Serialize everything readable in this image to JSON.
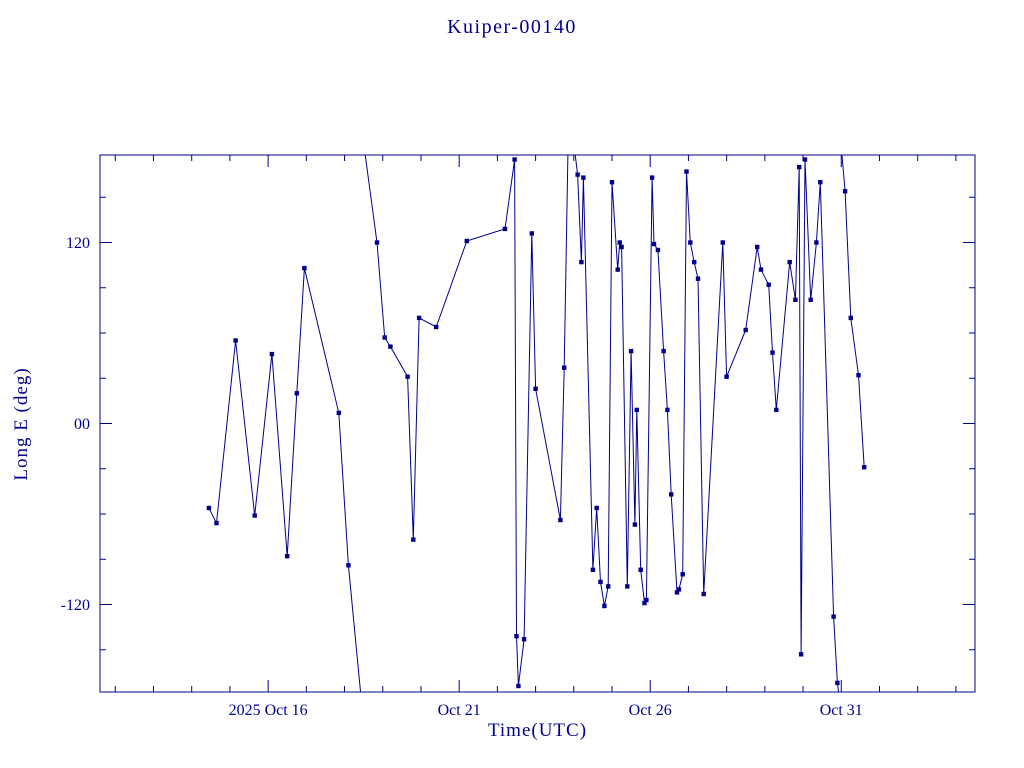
{
  "colors": {
    "plot": "#00008b",
    "background": "#ffffff"
  },
  "chart_data": {
    "type": "line",
    "title": "Kuiper-00140",
    "xlabel": "Time(UTC)",
    "ylabel": "Long E (deg)",
    "x_unit": "day of October 2025, UTC (32 = Nov 1)",
    "xlim": [
      11.6,
      34.5
    ],
    "ylim": [
      -178,
      178
    ],
    "grid": false,
    "legend": "none",
    "marker": "filled-square",
    "x_ticks_major": [
      {
        "day": 16,
        "label": "2025 Oct 16"
      },
      {
        "day": 21,
        "label": "Oct 21"
      },
      {
        "day": 26,
        "label": "Oct 26"
      },
      {
        "day": 31,
        "label": "Oct 31"
      }
    ],
    "x_ticks_minor_days": [
      12,
      13,
      14,
      15,
      17,
      18,
      19,
      20,
      22,
      23,
      24,
      25,
      27,
      28,
      29,
      30,
      32,
      33,
      34
    ],
    "y_ticks_major": [
      {
        "value": -120,
        "label": "-120"
      },
      {
        "value": 0,
        "label": "00"
      },
      {
        "value": 120,
        "label": "120"
      }
    ],
    "y_ticks_minor": [
      -150,
      -90,
      -60,
      -30,
      30,
      60,
      90,
      150
    ],
    "segments": [
      [
        [
          14.45,
          -56
        ],
        [
          14.65,
          -66
        ],
        [
          15.15,
          55
        ],
        [
          15.65,
          -61
        ],
        [
          16.1,
          46
        ],
        [
          16.5,
          -88
        ],
        [
          16.75,
          20
        ],
        [
          16.95,
          103
        ],
        [
          17.85,
          7
        ],
        [
          18.1,
          -94
        ],
        [
          18.45,
          -186
        ]
      ],
      [
        [
          18.5,
          186
        ],
        [
          18.85,
          120
        ],
        [
          19.05,
          57
        ],
        [
          19.2,
          51
        ],
        [
          19.65,
          31
        ],
        [
          19.8,
          -77
        ],
        [
          19.95,
          70
        ],
        [
          20.4,
          64
        ],
        [
          21.2,
          121
        ],
        [
          22.2,
          129
        ],
        [
          22.45,
          175
        ],
        [
          22.5,
          -141
        ],
        [
          22.55,
          -174
        ],
        [
          22.7,
          -143
        ],
        [
          22.9,
          126
        ],
        [
          23.0,
          23
        ],
        [
          23.65,
          -64
        ],
        [
          23.75,
          37
        ],
        [
          23.85,
          186
        ]
      ],
      [
        [
          24.0,
          186
        ],
        [
          24.1,
          165
        ],
        [
          24.2,
          107
        ],
        [
          24.25,
          163
        ],
        [
          24.5,
          -97
        ],
        [
          24.6,
          -56
        ],
        [
          24.7,
          -105
        ],
        [
          24.8,
          -121
        ],
        [
          24.9,
          -108
        ],
        [
          25.0,
          160
        ],
        [
          25.15,
          102
        ],
        [
          25.2,
          120
        ],
        [
          25.25,
          117
        ],
        [
          25.4,
          -108
        ],
        [
          25.5,
          48
        ],
        [
          25.6,
          -67
        ],
        [
          25.65,
          9
        ],
        [
          25.75,
          -97
        ],
        [
          25.85,
          -119
        ],
        [
          25.9,
          -117
        ],
        [
          26.05,
          163
        ],
        [
          26.1,
          119
        ],
        [
          26.2,
          115
        ],
        [
          26.35,
          48
        ],
        [
          26.45,
          9
        ],
        [
          26.55,
          -47
        ],
        [
          26.7,
          -112
        ],
        [
          26.75,
          -110
        ],
        [
          26.85,
          -100
        ],
        [
          26.95,
          167
        ],
        [
          27.05,
          120
        ],
        [
          27.15,
          107
        ],
        [
          27.25,
          96
        ],
        [
          27.4,
          -113
        ],
        [
          27.9,
          120
        ],
        [
          28.0,
          31
        ],
        [
          28.5,
          62
        ],
        [
          28.8,
          117
        ],
        [
          28.9,
          102
        ],
        [
          29.1,
          92
        ],
        [
          29.2,
          47
        ],
        [
          29.3,
          9
        ],
        [
          29.65,
          107
        ],
        [
          29.8,
          82
        ],
        [
          29.9,
          170
        ],
        [
          29.95,
          -153
        ],
        [
          30.05,
          175
        ],
        [
          30.2,
          82
        ],
        [
          30.35,
          120
        ],
        [
          30.45,
          160
        ],
        [
          30.8,
          -128
        ],
        [
          30.9,
          -172
        ],
        [
          30.97,
          -186
        ]
      ],
      [
        [
          31.0,
          183
        ],
        [
          31.1,
          154
        ],
        [
          31.25,
          70
        ],
        [
          31.45,
          32
        ],
        [
          31.6,
          -29
        ]
      ]
    ]
  }
}
